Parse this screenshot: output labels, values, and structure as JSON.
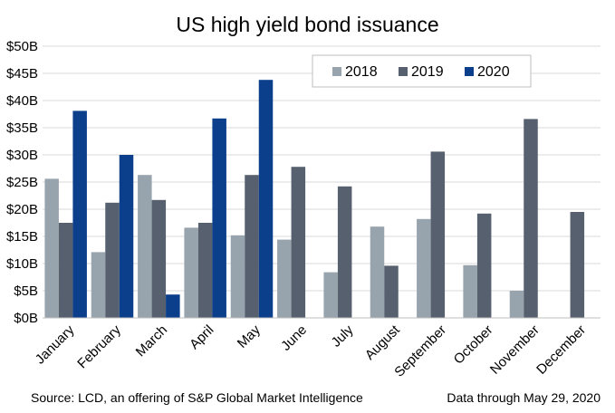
{
  "chart_data": {
    "type": "bar",
    "title": "US high yield bond issuance",
    "categories": [
      "January",
      "February",
      "March",
      "April",
      "May",
      "June",
      "July",
      "August",
      "September",
      "October",
      "November",
      "December"
    ],
    "series": [
      {
        "name": "2018",
        "color": "#97a3ad",
        "values": [
          25.6,
          12.1,
          26.3,
          16.6,
          15.2,
          14.4,
          8.4,
          16.8,
          18.2,
          9.7,
          5.0,
          null
        ]
      },
      {
        "name": "2019",
        "color": "#56606e",
        "values": [
          17.5,
          21.2,
          21.7,
          17.5,
          26.3,
          27.8,
          24.2,
          9.6,
          30.6,
          19.2,
          36.6,
          19.5
        ]
      },
      {
        "name": "2020",
        "color": "#0b3f8c",
        "values": [
          38.1,
          30.0,
          4.3,
          36.7,
          43.8,
          null,
          null,
          null,
          null,
          null,
          null,
          null
        ]
      }
    ],
    "ylim": [
      0,
      50
    ],
    "yticks": [
      "$0B",
      "$5B",
      "$10B",
      "$15B",
      "$20B",
      "$25B",
      "$30B",
      "$35B",
      "$40B",
      "$45B",
      "$50B"
    ],
    "grid": true,
    "legend_position": "top-right"
  },
  "footer": {
    "source": "Source: LCD, an offering of S&P Global Market Intelligence",
    "date_note": "Data through May 29, 2020"
  }
}
